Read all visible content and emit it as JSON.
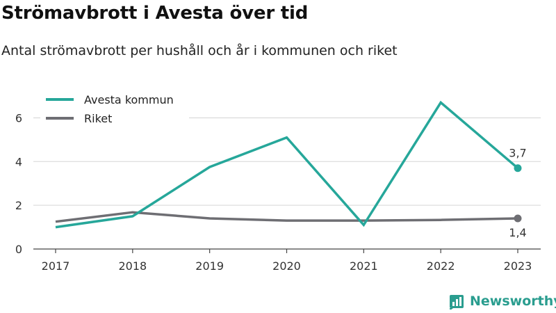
{
  "header": {
    "title": "Strömavbrott i Avesta över tid",
    "subtitle": "Antal strömavbrott per hushåll och år i kommunen och riket"
  },
  "brand": {
    "name": "Newsworthy",
    "icon": "newsworthy-logo-icon"
  },
  "colors": {
    "avesta": "#26a79a",
    "riket": "#6e6e73",
    "grid": "#dddddd",
    "brand": "#2a9d8f"
  },
  "chart_data": {
    "type": "line",
    "x": [
      "2017",
      "2018",
      "2019",
      "2020",
      "2021",
      "2022",
      "2023"
    ],
    "series": [
      {
        "name": "Avesta kommun",
        "values": [
          1.0,
          1.5,
          3.75,
          5.1,
          1.1,
          6.7,
          3.7
        ],
        "color": "#26a79a"
      },
      {
        "name": "Riket",
        "values": [
          1.25,
          1.68,
          1.4,
          1.3,
          1.3,
          1.33,
          1.4
        ],
        "color": "#6e6e73"
      }
    ],
    "yticks": [
      "0",
      "2",
      "4",
      "6"
    ],
    "ylim": [
      0,
      7
    ],
    "end_labels": [
      "3,7",
      "1,4"
    ],
    "legend": "top-left",
    "grid": true
  }
}
